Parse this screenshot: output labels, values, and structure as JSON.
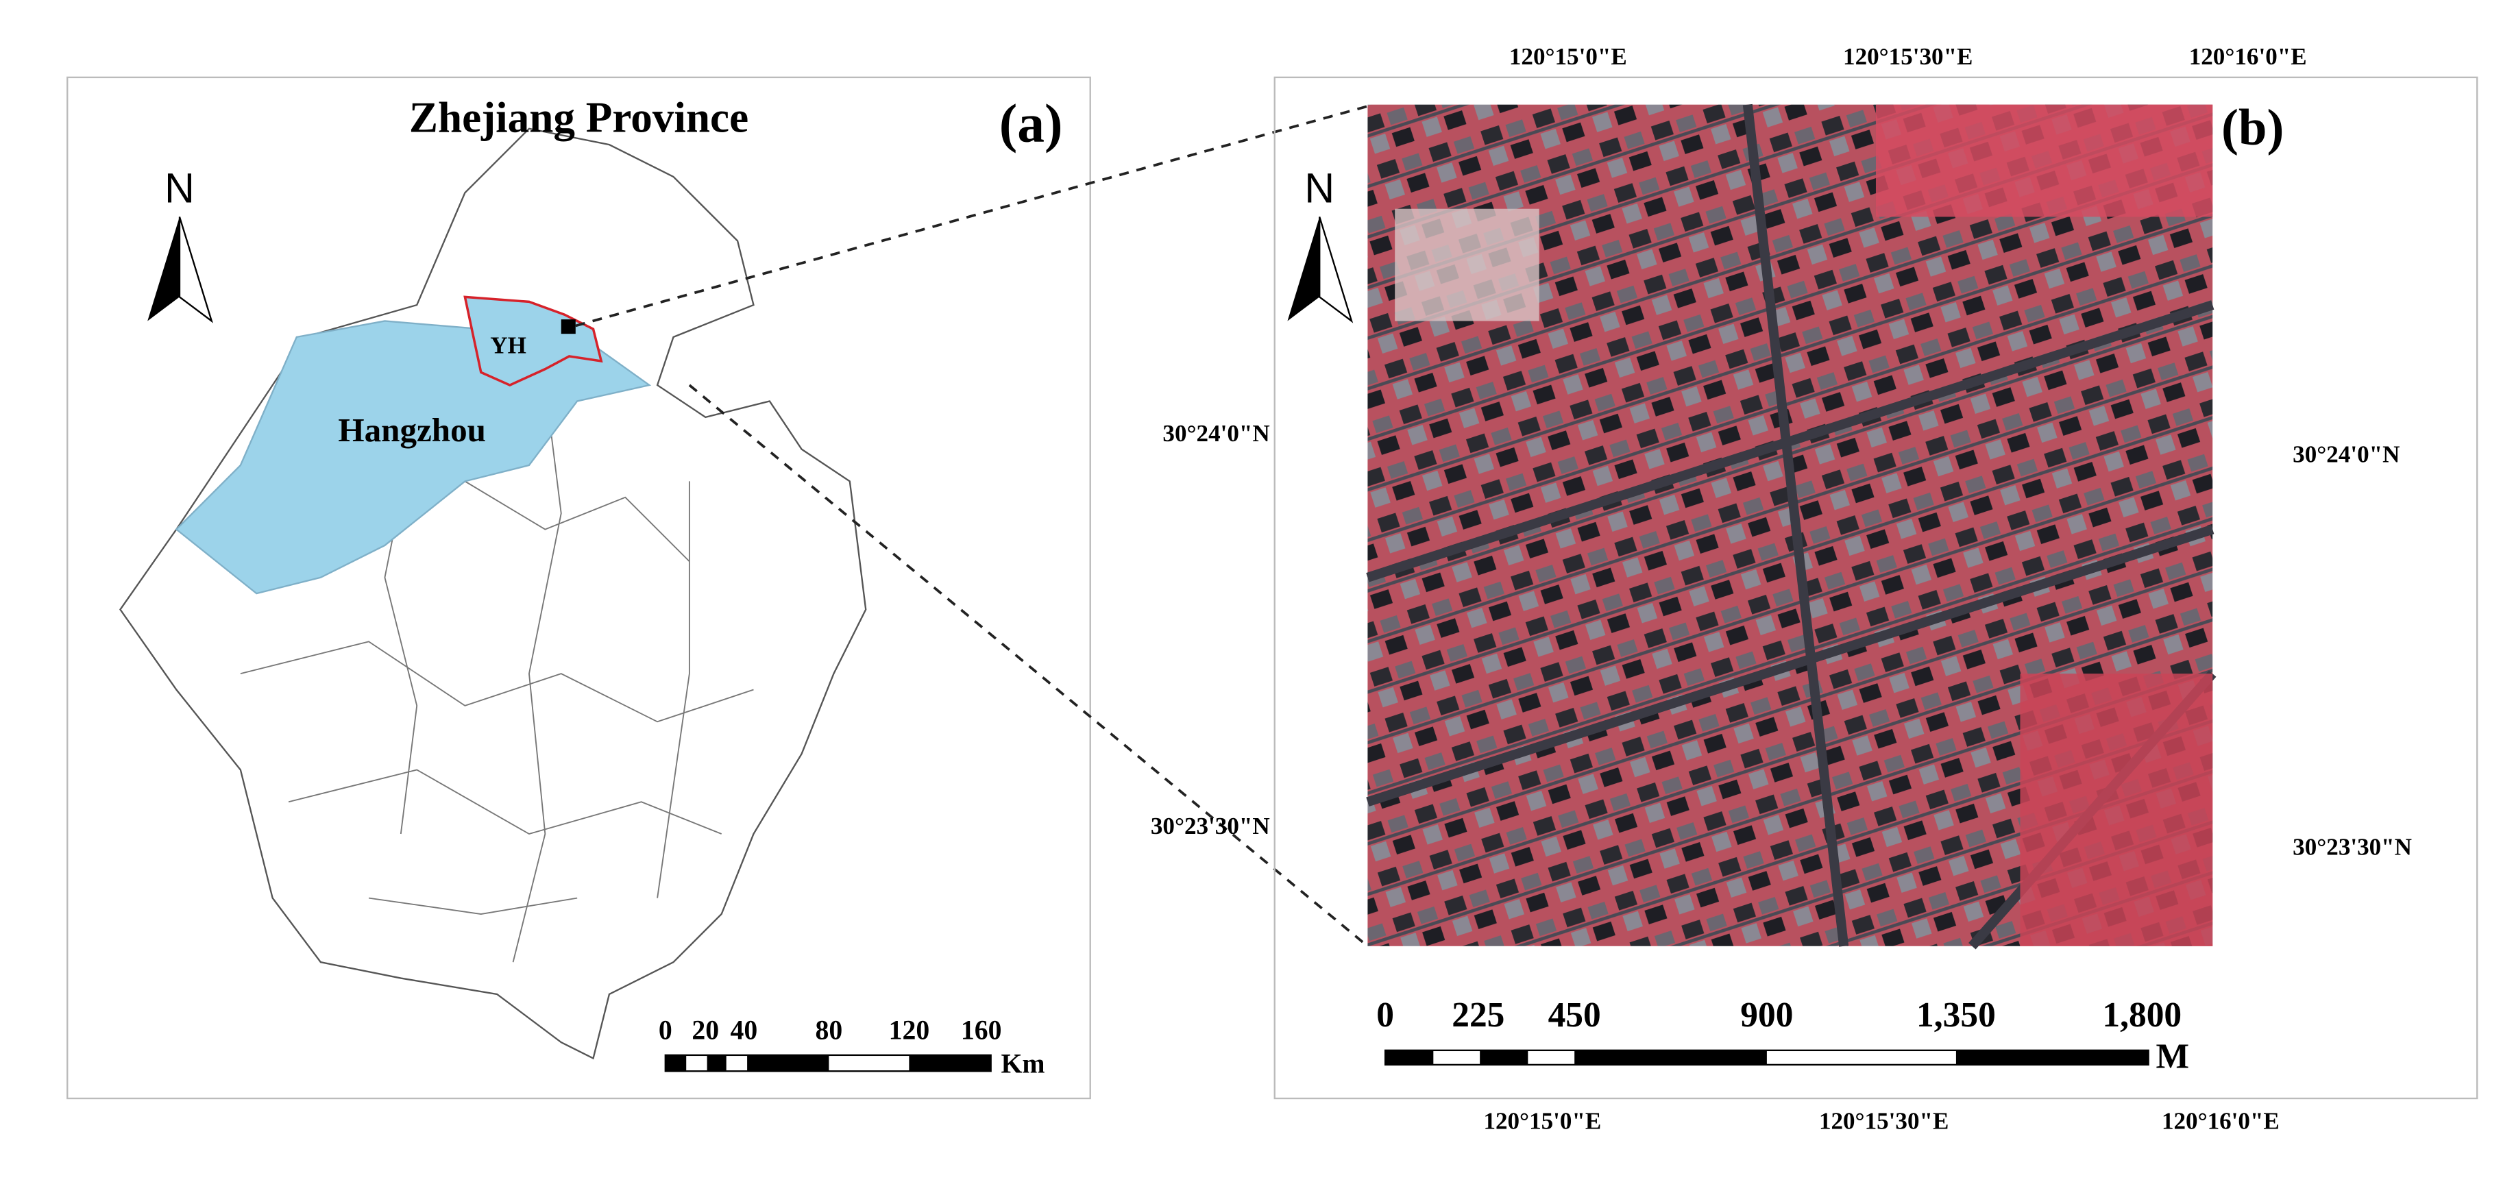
{
  "panel_a": {
    "title": "Zhejiang Province",
    "label": "(a)",
    "north": "N",
    "region_label": "YH",
    "city_label": "Hangzhou",
    "scale": {
      "ticks": [
        "0",
        "20",
        "40",
        "80",
        "120",
        "160"
      ],
      "unit": "Km"
    }
  },
  "panel_b": {
    "label": "(b)",
    "north": "N",
    "top_lon": [
      "120°15'0\"E",
      "120°15'30\"E",
      "120°16'0\"E"
    ],
    "bottom_lon": [
      "120°15'0\"E",
      "120°15'30\"E",
      "120°16'0\"E"
    ],
    "left_lat": [
      "30°24'0\"N",
      "30°23'30\"N"
    ],
    "right_lat": [
      "30°24'0\"N",
      "30°23'30\"N"
    ],
    "scale": {
      "ticks": [
        "0",
        "225",
        "450",
        "900",
        "1,350",
        "1,800"
      ],
      "unit": "M"
    }
  }
}
